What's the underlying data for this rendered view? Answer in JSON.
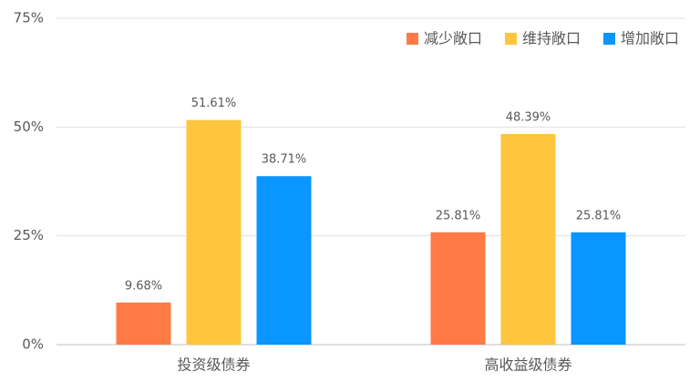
{
  "chart_data": {
    "type": "bar",
    "categories": [
      "投资级债券",
      "高收益级债券"
    ],
    "series": [
      {
        "name": "减少敞口",
        "color": "#FF7A45",
        "values": [
          9.68,
          25.81
        ],
        "value_labels": [
          "9.68%",
          "25.81%"
        ]
      },
      {
        "name": "维持敞口",
        "color": "#FFC53D",
        "values": [
          51.61,
          48.39
        ],
        "value_labels": [
          "51.61%",
          "48.39%"
        ]
      },
      {
        "name": "增加敞口",
        "color": "#0A96FF",
        "values": [
          38.71,
          25.81
        ],
        "value_labels": [
          "38.71%",
          "25.81%"
        ]
      }
    ],
    "ylim": [
      0,
      75
    ],
    "yticks": [
      {
        "value": 0,
        "label": "0%"
      },
      {
        "value": 25,
        "label": "25%"
      },
      {
        "value": 50,
        "label": "50%"
      },
      {
        "value": 75,
        "label": "75%"
      }
    ],
    "grid": true,
    "legend": "top-right"
  }
}
